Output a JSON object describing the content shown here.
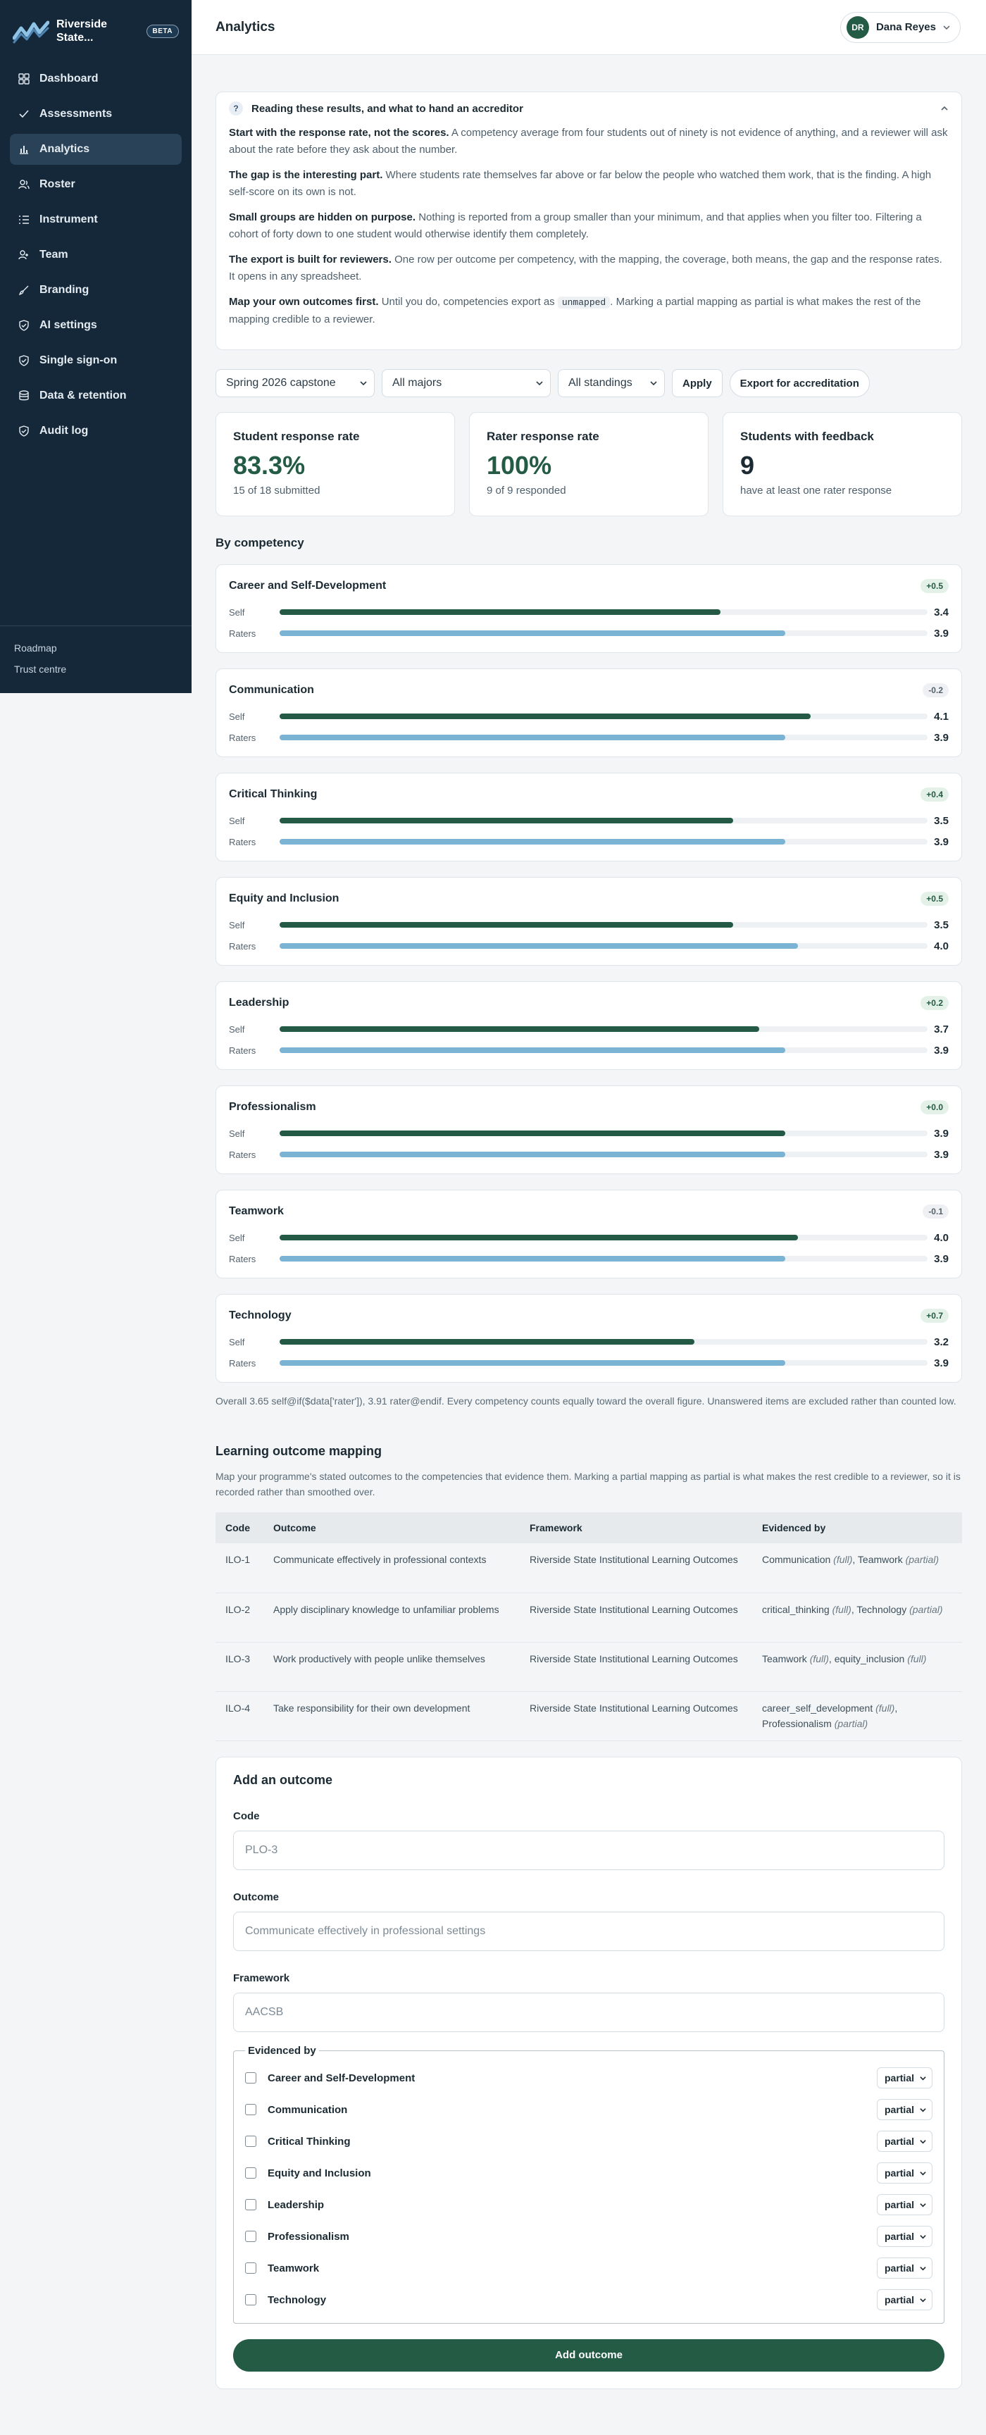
{
  "brand": {
    "name": "Riverside State...",
    "badge": "BETA"
  },
  "sidebar": {
    "items": [
      {
        "label": "Dashboard",
        "icon": "grid-icon"
      },
      {
        "label": "Assessments",
        "icon": "check-icon"
      },
      {
        "label": "Analytics",
        "icon": "bar-chart-icon",
        "active": true
      },
      {
        "label": "Roster",
        "icon": "users-icon"
      },
      {
        "label": "Instrument",
        "icon": "list-icon"
      },
      {
        "label": "Team",
        "icon": "team-icon"
      },
      {
        "label": "Branding",
        "icon": "brush-icon"
      },
      {
        "label": "AI settings",
        "icon": "shield-icon"
      },
      {
        "label": "Single sign-on",
        "icon": "shield-icon"
      },
      {
        "label": "Data & retention",
        "icon": "database-icon"
      },
      {
        "label": "Audit log",
        "icon": "shield-icon"
      }
    ],
    "footer": [
      "Roadmap",
      "Trust centre"
    ]
  },
  "header": {
    "title": "Analytics",
    "user_initials": "DR",
    "user_name": "Dana Reyes"
  },
  "guide": {
    "title": "Reading these results, and what to hand an accreditor",
    "paragraphs": [
      {
        "lead": "Start with the response rate, not the scores.",
        "text": " A competency average from four students out of ninety is not evidence of anything, and a reviewer will ask about the rate before they ask about the number."
      },
      {
        "lead": "The gap is the interesting part.",
        "text": " Where students rate themselves far above or far below the people who watched them work, that is the finding. A high self-score on its own is not."
      },
      {
        "lead": "Small groups are hidden on purpose.",
        "text": " Nothing is reported from a group smaller than your minimum, and that applies when you filter too. Filtering a cohort of forty down to one student would otherwise identify them completely."
      },
      {
        "lead": "The export is built for reviewers.",
        "text": " One row per outcome per competency, with the mapping, the coverage, both means, the gap and the response rates. It opens in any spreadsheet."
      }
    ],
    "last": {
      "lead": "Map your own outcomes first.",
      "before": " Until you do, competencies export as ",
      "code": "unmapped",
      "after": ". Marking a partial mapping as partial is what makes the rest of the mapping credible to a reviewer."
    }
  },
  "filters": {
    "cohort": "Spring 2026 capstone",
    "major": "All majors",
    "standing": "All standings",
    "apply": "Apply",
    "export": "Export for accreditation"
  },
  "stats": [
    {
      "label": "Student response rate",
      "value": "83.3%",
      "sub": "15 of 18 submitted"
    },
    {
      "label": "Rater response rate",
      "value": "100%",
      "sub": "9 of 9 responded"
    },
    {
      "label": "Students with feedback",
      "value": "9",
      "sub": "have at least one rater response"
    }
  ],
  "competency_section": {
    "title": "By competency",
    "self_label": "Self",
    "raters_label": "Raters",
    "scale_max": 5,
    "items": [
      {
        "name": "Career and Self-Development",
        "delta": "+0.5",
        "self": 3.4,
        "raters": 3.9
      },
      {
        "name": "Communication",
        "delta": "-0.2",
        "self": 4.1,
        "raters": 3.9
      },
      {
        "name": "Critical Thinking",
        "delta": "+0.4",
        "self": 3.5,
        "raters": 3.9
      },
      {
        "name": "Equity and Inclusion",
        "delta": "+0.5",
        "self": 3.5,
        "raters": 4.0
      },
      {
        "name": "Leadership",
        "delta": "+0.2",
        "self": 3.7,
        "raters": 3.9
      },
      {
        "name": "Professionalism",
        "delta": "+0.0",
        "self": 3.9,
        "raters": 3.9
      },
      {
        "name": "Teamwork",
        "delta": "-0.1",
        "self": 4.0,
        "raters": 3.9
      },
      {
        "name": "Technology",
        "delta": "+0.7",
        "self": 3.2,
        "raters": 3.9
      }
    ],
    "footnote": "Overall 3.65 self@if($data['rater']), 3.91 rater@endif. Every competency counts equally toward the overall figure. Unanswered items are excluded rather than counted low."
  },
  "outcomes": {
    "title": "Learning outcome mapping",
    "description": "Map your programme's stated outcomes to the competencies that evidence them. Marking a partial mapping as partial is what makes the rest credible to a reviewer, so it is recorded rather than smoothed over.",
    "columns": [
      "Code",
      "Outcome",
      "Framework",
      "Evidenced by"
    ],
    "rows": [
      {
        "code": "ILO-1",
        "outcome": "Communicate effectively in professional contexts",
        "framework": "Riverside State Institutional Learning Outcomes",
        "evidence": [
          {
            "name": "Communication",
            "level": "(full)"
          },
          {
            "name": "Teamwork",
            "level": "(partial)"
          }
        ]
      },
      {
        "code": "ILO-2",
        "outcome": "Apply disciplinary knowledge to unfamiliar problems",
        "framework": "Riverside State Institutional Learning Outcomes",
        "evidence": [
          {
            "name": "critical_thinking",
            "level": "(full)"
          },
          {
            "name": "Technology",
            "level": "(partial)"
          }
        ]
      },
      {
        "code": "ILO-3",
        "outcome": "Work productively with people unlike themselves",
        "framework": "Riverside State Institutional Learning Outcomes",
        "evidence": [
          {
            "name": "Teamwork",
            "level": "(full)"
          },
          {
            "name": "equity_inclusion",
            "level": "(full)"
          }
        ]
      },
      {
        "code": "ILO-4",
        "outcome": "Take responsibility for their own development",
        "framework": "Riverside State Institutional Learning Outcomes",
        "evidence": [
          {
            "name": "career_self_development",
            "level": "(full)"
          },
          {
            "name": "Professionalism",
            "level": "(partial)"
          }
        ]
      }
    ]
  },
  "form": {
    "title": "Add an outcome",
    "code_label": "Code",
    "code_placeholder": "PLO-3",
    "outcome_label": "Outcome",
    "outcome_placeholder": "Communicate effectively in professional settings",
    "framework_label": "Framework",
    "framework_placeholder": "AACSB",
    "evidenced_label": "Evidenced by",
    "level_default": "partial",
    "competencies": [
      "Career and Self-Development",
      "Communication",
      "Critical Thinking",
      "Equity and Inclusion",
      "Leadership",
      "Professionalism",
      "Teamwork",
      "Technology"
    ],
    "submit": "Add outcome"
  },
  "colors": {
    "sidebar": "#14283a",
    "accent": "#235b45",
    "self_bar": "#245a45",
    "raters_bar": "#7ab3d4"
  }
}
